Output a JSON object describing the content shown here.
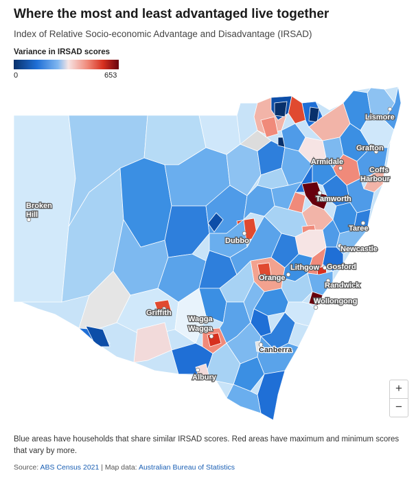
{
  "title": "Where the most and least advantaged live together",
  "subtitle": "Index of Relative Socio-economic Advantage and Disadvantage (IRSAD)",
  "legend": {
    "title": "Variance in IRSAD scores",
    "min": "0",
    "max": "653",
    "colors": [
      "#08306b",
      "#1f6fd6",
      "#7fb6f0",
      "#f6e4e4",
      "#f08a7a",
      "#d7301f",
      "#67000d"
    ]
  },
  "cities": {
    "lismore": "Lismore",
    "grafton": "Grafton",
    "coffs_line1": "Coffs",
    "coffs_line2": "Harbour",
    "armidale": "Armidale",
    "tamworth": "Tamworth",
    "taree": "Taree",
    "newcastle": "Newcastle",
    "gosford": "Gosford",
    "lithgow": "Lithgow",
    "randwick": "Randwick",
    "wollongong": "Wollongong",
    "orange": "Orange",
    "dubbo": "Dubbo",
    "broken_line1": "Broken",
    "broken_line2": "Hill",
    "griffith": "Griffith",
    "wagga_line1": "Wagga",
    "wagga_line2": "Wagga",
    "canberra": "Canberra",
    "albury": "Albury"
  },
  "controls": {
    "zoom_in": "+",
    "zoom_out": "−"
  },
  "note": "Blue areas have households that share similar IRSAD scores. Red areas have maximum and minimum scores that vary by more.",
  "source": {
    "prefix": "Source: ",
    "link1": "ABS Census 2021",
    "middle": " | Map data: ",
    "link2": "Australian Bureau of Statistics"
  }
}
